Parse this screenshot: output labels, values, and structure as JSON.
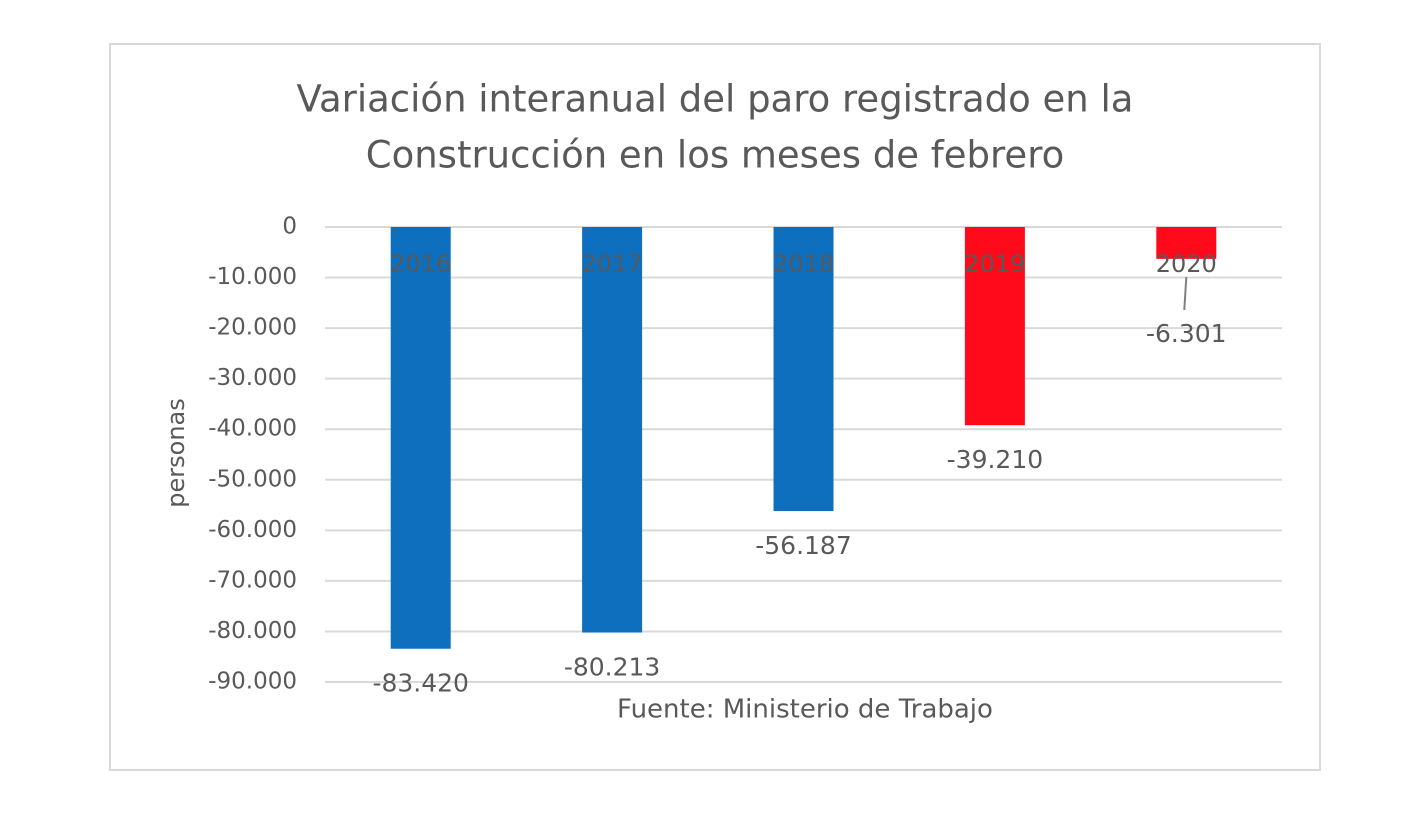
{
  "chart_data": {
    "type": "bar",
    "title": [
      "Variación interanual del paro registrado en la",
      "Construcción en los meses de febrero"
    ],
    "y_label": "personas",
    "annotation": "Fuente: Ministerio de Trabajo",
    "categories": [
      "2016",
      "2017",
      "2018",
      "2019",
      "2020"
    ],
    "values": [
      -83420,
      -80213,
      -56187,
      -39210,
      -6301
    ],
    "value_labels": [
      "-83.420",
      "-80.213",
      "-56.187",
      "-39.210",
      "-6.301"
    ],
    "colors": [
      "#0f6fbf",
      "#0f6fbf",
      "#0f6fbf",
      "#ff0a1a",
      "#ff0a1a"
    ],
    "ylim": [
      -90000,
      0
    ],
    "yticks": [
      0,
      {
        "value": -10000,
        "label": "-10.000"
      },
      {
        "value": -20000,
        "label": "-20.000"
      },
      {
        "value": -30000,
        "label": "-30.000"
      },
      {
        "value": -40000,
        "label": "-40.000"
      },
      {
        "value": -50000,
        "label": "-50.000"
      },
      {
        "value": -60000,
        "label": "-60.000"
      },
      {
        "value": -70000,
        "label": "-70.000"
      },
      {
        "value": -80000,
        "label": "-80.000"
      },
      {
        "value": -90000,
        "label": "-90.000"
      }
    ],
    "grid": true
  }
}
